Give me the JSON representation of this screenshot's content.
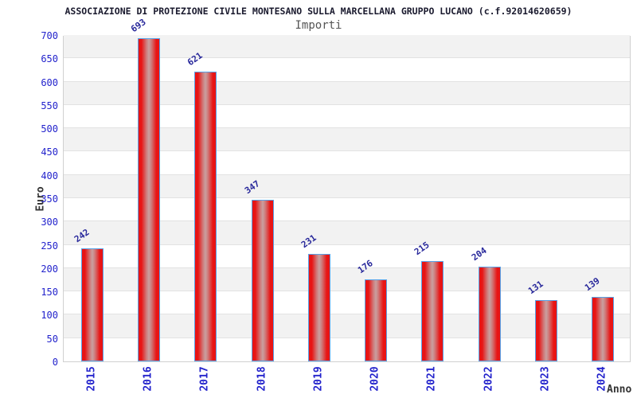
{
  "header": {
    "title": "ASSOCIAZIONE DI PROTEZIONE CIVILE MONTESANO SULLA MARCELLANA GRUPPO LUCANO (c.f.92014620659)",
    "subtitle": "Importi"
  },
  "chart_data": {
    "type": "bar",
    "title": "Importi",
    "categories": [
      "2015",
      "2016",
      "2017",
      "2018",
      "2019",
      "2020",
      "2021",
      "2022",
      "2023",
      "2024"
    ],
    "values": [
      242,
      693,
      621,
      347,
      231,
      176,
      215,
      204,
      131,
      139
    ],
    "xlabel": "Anno",
    "ylabel": "Euro",
    "ylim": [
      0,
      700
    ],
    "ytick_step": 50,
    "yticks": [
      0,
      50,
      100,
      150,
      200,
      250,
      300,
      350,
      400,
      450,
      500,
      550,
      600,
      650,
      700
    ],
    "grid": true,
    "legend": "none",
    "bar_labels_rotation_deg": -35,
    "xtick_rotation_deg": -90
  },
  "colors": {
    "title_text": "#1a1a2e",
    "subtitle_text": "#555555",
    "axis_tick_text": "#2323cc",
    "bar_value_text": "#28289b",
    "axis_title_text": "#333333",
    "bar_fill_edge": "#e81414",
    "bar_fill_center": "#c9a0a0",
    "bar_border": "#58a2e8",
    "band_gray": "#f2f2f2",
    "gridline": "#e2e2e2",
    "plot_border": "#d0d0d0"
  }
}
